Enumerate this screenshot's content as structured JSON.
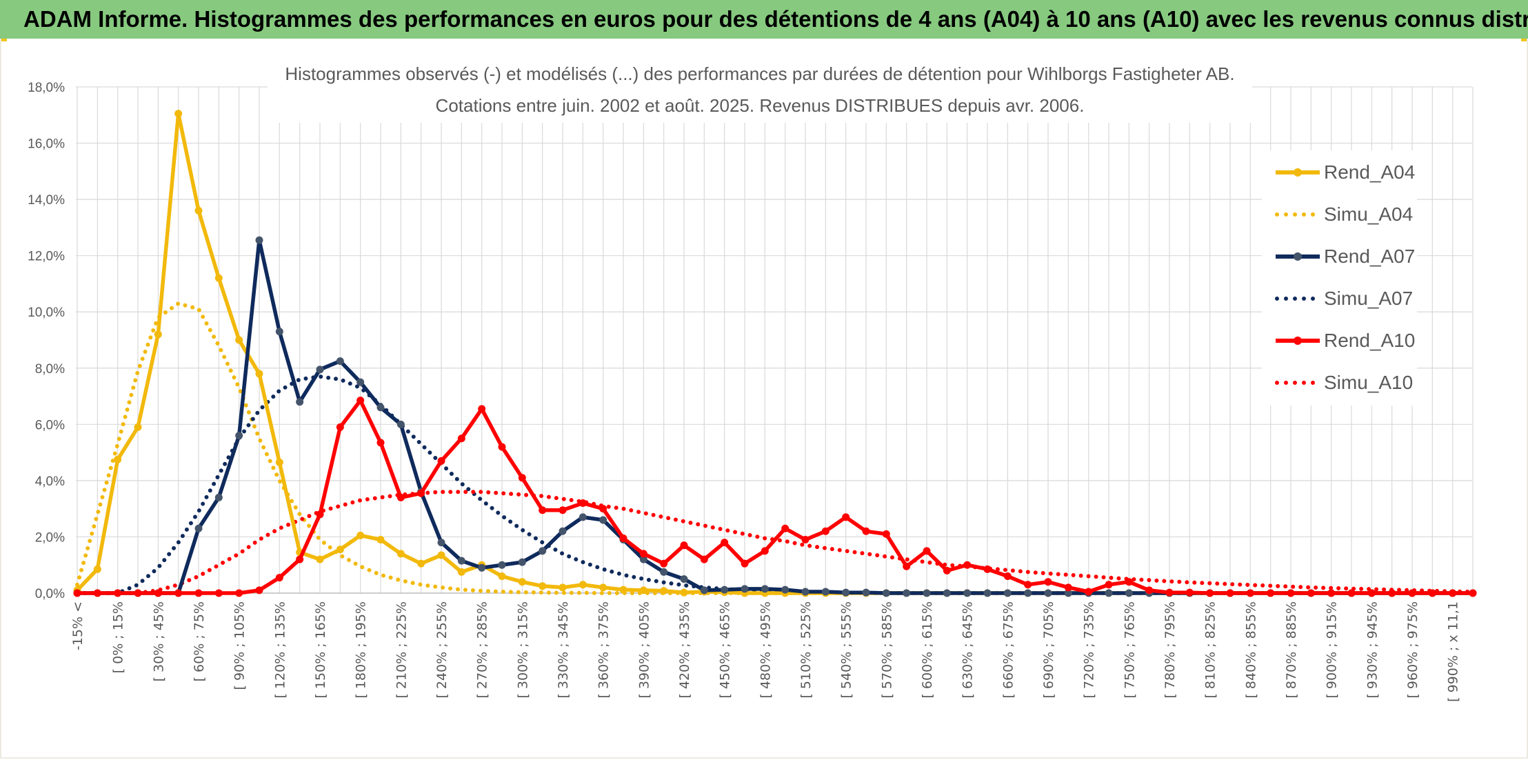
{
  "header": {
    "title": "ADAM Informe. Histogrammes des performances en euros pour des détentions de 4 ans (A04) à 10 ans (A10) avec les revenus connus distribués"
  },
  "colors": {
    "header_bg": "#86c97f",
    "yellow": "#f2b90c",
    "navy": "#0f2a5c",
    "navy_marker": "#44546a",
    "red": "#ff0000",
    "grid": "#d9d9d9",
    "text": "#595959"
  },
  "chart_data": {
    "type": "line",
    "title_lines": [
      "Histogrammes observés (-) et modélisés (...) des performances par durées de détention pour Wihlborgs Fastigheter AB.",
      "Cotations entre juin. 2002 et août. 2025. Revenus DISTRIBUES depuis avr. 2006."
    ],
    "y_ticks": [
      "0,0%",
      "2,0%",
      "4,0%",
      "6,0%",
      "8,0%",
      "10,0%",
      "12,0%",
      "14,0%",
      "16,0%",
      "18,0%"
    ],
    "ylim": [
      0,
      18
    ],
    "y_unit": "%",
    "grid": true,
    "legend_position": "right",
    "x_tick_labels": [
      "-15% <",
      "[ 0% ; 15%",
      "[ 30% ; 45%",
      "[ 60% ; 75%",
      "[ 90% ; 105%",
      "[ 120% ; 135%",
      "[ 150% ; 165%",
      "[ 180% ; 195%",
      "[ 210% ; 225%",
      "[ 240% ; 255%",
      "[ 270% ; 285%",
      "[ 300% ; 315%",
      "[ 330% ; 345%",
      "[ 360% ; 375%",
      "[ 390% ; 405%",
      "[ 420% ; 435%",
      "[ 450% ; 465%",
      "[ 480% ; 495%",
      "[ 510% ; 525%",
      "[ 540% ; 555%",
      "[ 570% ; 585%",
      "[ 600% ; 615%",
      "[ 630% ; 645%",
      "[ 660% ; 675%",
      "[ 690% ; 705%",
      "[ 720% ; 735%",
      "[ 750% ; 765%",
      "[ 780% ; 795%",
      "[ 810% ; 825%",
      "[ 840% ; 855%",
      "[ 870% ; 885%",
      "[ 900% ; 915%",
      "[ 930% ; 945%",
      "[ 960% ; 975%",
      "[ 990% ; x 11,1"
    ],
    "series": [
      {
        "name": "Rend_A04",
        "style": "solid",
        "color": "#f2b90c",
        "marker_color": "#f2b90c",
        "values": [
          0.1,
          0.85,
          4.75,
          5.9,
          9.2,
          17.05,
          13.6,
          11.2,
          9.0,
          7.8,
          4.65,
          1.45,
          1.2,
          1.55,
          2.05,
          1.9,
          1.4,
          1.05,
          1.35,
          0.75,
          1.0,
          0.6,
          0.4,
          0.25,
          0.2,
          0.3,
          0.2,
          0.12,
          0.1,
          0.08,
          0.02,
          0.05,
          0.03,
          0.0,
          0.0,
          0.0,
          0.0,
          0.0,
          0.0,
          0.0,
          0.0,
          0.0,
          0.0,
          0.0,
          0.0,
          0.0,
          0.0,
          0.0,
          0.0,
          0.0,
          0.0,
          0.0,
          0.0,
          0.0,
          0.0,
          0.0,
          0.0,
          0.0,
          0.0,
          0.0,
          0.0,
          0.0,
          0.0,
          0.0,
          0.0,
          0.0,
          0.0,
          0.0,
          0.0,
          0.0
        ]
      },
      {
        "name": "Simu_A04",
        "style": "dotted",
        "color": "#f2b90c",
        "values": [
          0.3,
          2.8,
          5.3,
          7.9,
          9.8,
          10.3,
          10.1,
          8.8,
          7.3,
          5.5,
          4.0,
          2.8,
          1.9,
          1.35,
          0.95,
          0.65,
          0.45,
          0.3,
          0.2,
          0.12,
          0.08,
          0.05,
          0.03,
          0.02,
          0.01,
          0.01,
          0.0,
          0.0,
          0.0,
          0.0,
          0.0,
          0.0,
          0.0,
          0.0,
          0.0,
          0.0,
          0.0,
          0.0,
          0.0,
          0.0,
          0.0,
          0.0,
          0.0,
          0.0,
          0.0,
          0.0,
          0.0,
          0.0,
          0.0,
          0.0,
          0.0,
          0.0,
          0.0,
          0.0,
          0.0,
          0.0,
          0.0,
          0.0,
          0.0,
          0.0,
          0.0,
          0.0,
          0.0,
          0.0,
          0.0,
          0.0,
          0.0,
          0.0,
          0.0,
          0.0
        ]
      },
      {
        "name": "Rend_A07",
        "style": "solid",
        "color": "#0f2a5c",
        "marker_color": "#44546a",
        "values": [
          0.0,
          0.0,
          0.0,
          0.0,
          0.0,
          0.0,
          2.3,
          3.4,
          5.6,
          12.55,
          9.3,
          6.8,
          7.95,
          8.25,
          7.5,
          6.6,
          6.0,
          3.6,
          1.8,
          1.15,
          0.9,
          1.0,
          1.1,
          1.5,
          2.2,
          2.7,
          2.6,
          1.9,
          1.2,
          0.75,
          0.5,
          0.1,
          0.12,
          0.15,
          0.15,
          0.12,
          0.05,
          0.05,
          0.02,
          0.02,
          0.0,
          0.0,
          0.0,
          0.0,
          0.0,
          0.0,
          0.0,
          0.0,
          0.0,
          0.0,
          0.0,
          0.0,
          0.0,
          0.0,
          0.0,
          0.0,
          0.0,
          0.0,
          0.0,
          0.0,
          0.0,
          0.0,
          0.0,
          0.0,
          0.0,
          0.0,
          0.0,
          0.0,
          0.0,
          0.0
        ]
      },
      {
        "name": "Simu_A07",
        "style": "dotted",
        "color": "#0f2a5c",
        "values": [
          0.0,
          0.0,
          0.0,
          0.3,
          0.9,
          1.8,
          2.9,
          4.2,
          5.5,
          6.5,
          7.2,
          7.6,
          7.7,
          7.6,
          7.3,
          6.7,
          6.0,
          5.3,
          4.6,
          3.9,
          3.3,
          2.75,
          2.25,
          1.8,
          1.4,
          1.1,
          0.85,
          0.65,
          0.5,
          0.38,
          0.28,
          0.2,
          0.15,
          0.1,
          0.07,
          0.05,
          0.03,
          0.02,
          0.01,
          0.01,
          0.0,
          0.0,
          0.0,
          0.0,
          0.0,
          0.0,
          0.0,
          0.0,
          0.0,
          0.0,
          0.0,
          0.0,
          0.0,
          0.0,
          0.0,
          0.0,
          0.0,
          0.0,
          0.0,
          0.0,
          0.0,
          0.0,
          0.0,
          0.0,
          0.0,
          0.0,
          0.0,
          0.0,
          0.0,
          0.0
        ]
      },
      {
        "name": "Rend_A10",
        "style": "solid",
        "color": "#ff0000",
        "marker_color": "#ff0000",
        "values": [
          0.0,
          0.0,
          0.0,
          0.0,
          0.0,
          0.0,
          0.0,
          0.0,
          0.0,
          0.1,
          0.55,
          1.2,
          2.8,
          5.9,
          6.85,
          5.35,
          3.4,
          3.55,
          4.7,
          5.5,
          6.55,
          5.2,
          4.1,
          2.95,
          2.95,
          3.2,
          3.0,
          1.95,
          1.4,
          1.05,
          1.7,
          1.2,
          1.8,
          1.05,
          1.5,
          2.3,
          1.9,
          2.2,
          2.7,
          2.2,
          2.1,
          0.95,
          1.5,
          0.8,
          1.0,
          0.85,
          0.6,
          0.3,
          0.4,
          0.2,
          0.05,
          0.3,
          0.4,
          0.1,
          0.02,
          0.02,
          0.0,
          0.0,
          0.0,
          0.0,
          0.0,
          0.0,
          0.0,
          0.0,
          0.0,
          0.0,
          0.0,
          0.0,
          0.0,
          0.0
        ]
      },
      {
        "name": "Simu_A10",
        "style": "dotted",
        "color": "#ff0000",
        "values": [
          0.0,
          0.0,
          0.0,
          0.0,
          0.1,
          0.3,
          0.6,
          1.0,
          1.4,
          1.9,
          2.3,
          2.6,
          2.9,
          3.1,
          3.3,
          3.4,
          3.5,
          3.55,
          3.6,
          3.6,
          3.6,
          3.55,
          3.5,
          3.45,
          3.35,
          3.25,
          3.1,
          3.0,
          2.85,
          2.7,
          2.55,
          2.4,
          2.25,
          2.1,
          1.95,
          1.85,
          1.7,
          1.6,
          1.5,
          1.4,
          1.3,
          1.2,
          1.1,
          1.0,
          0.95,
          0.88,
          0.82,
          0.75,
          0.7,
          0.65,
          0.6,
          0.55,
          0.5,
          0.46,
          0.42,
          0.38,
          0.35,
          0.32,
          0.29,
          0.26,
          0.23,
          0.2,
          0.18,
          0.16,
          0.14,
          0.12,
          0.1,
          0.08,
          0.06,
          0.05
        ]
      }
    ]
  }
}
